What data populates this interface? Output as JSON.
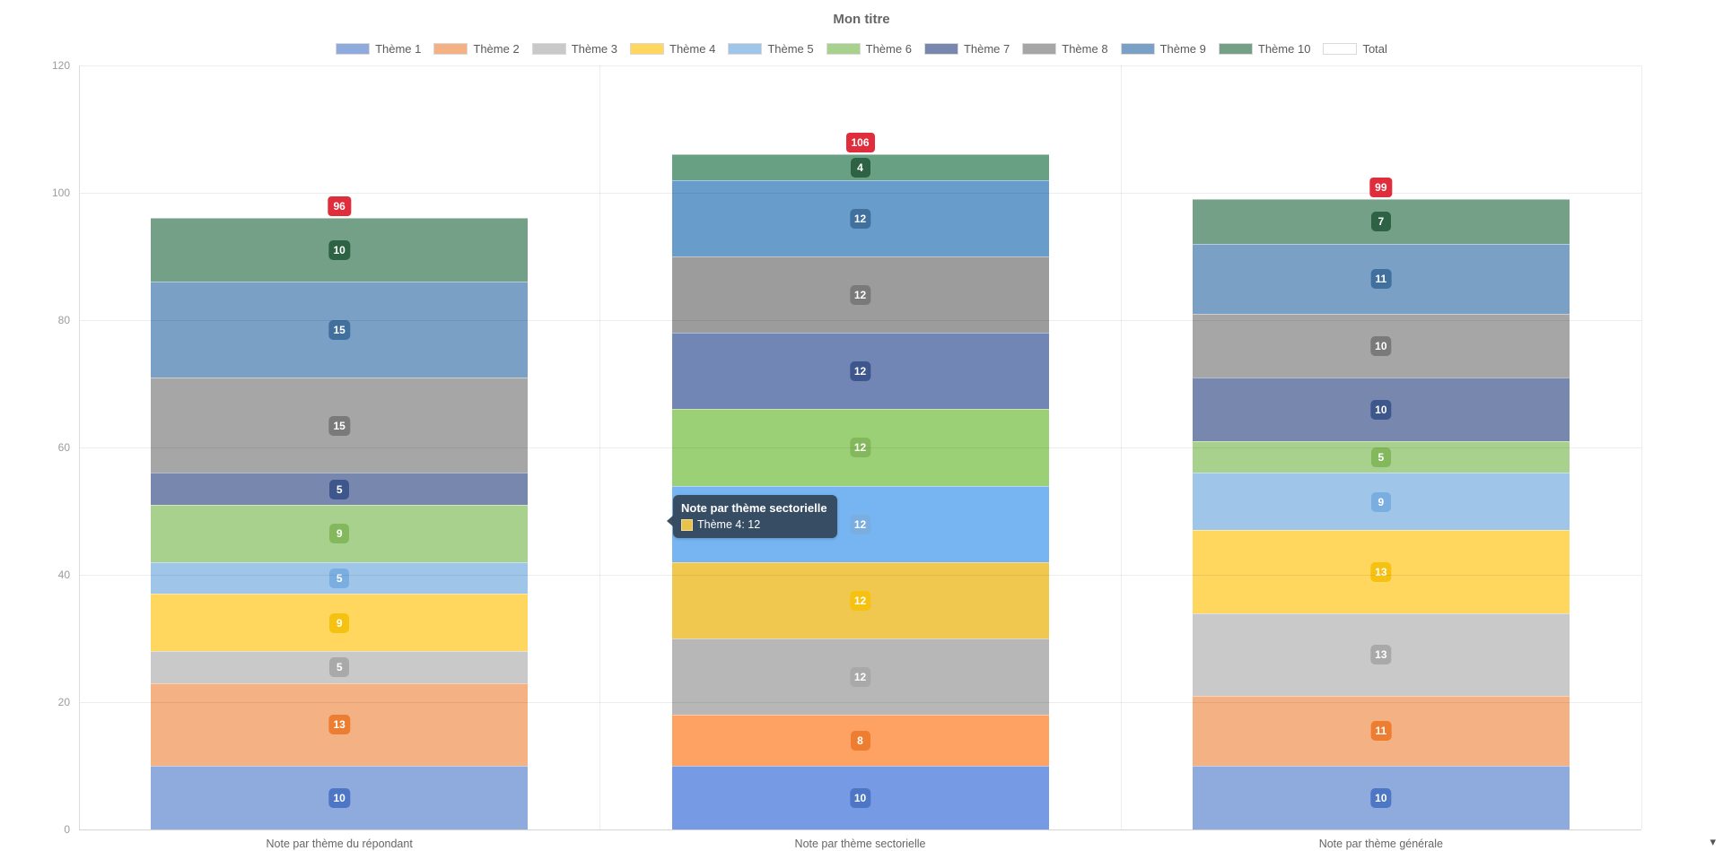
{
  "title": "Mon titre",
  "legend_items": [
    {
      "label": "Thème 1",
      "color": "#8faadc"
    },
    {
      "label": "Thème 2",
      "color": "#f4b183"
    },
    {
      "label": "Thème 3",
      "color": "#c9c9c9"
    },
    {
      "label": "Thème 4",
      "color": "#ffd75e"
    },
    {
      "label": "Thème 5",
      "color": "#9fc5e8"
    },
    {
      "label": "Thème 6",
      "color": "#a9d18e"
    },
    {
      "label": "Thème 7",
      "color": "#7787ad"
    },
    {
      "label": "Thème 8",
      "color": "#a6a6a6"
    },
    {
      "label": "Thème 9",
      "color": "#7ba0c6"
    },
    {
      "label": "Thème 10",
      "color": "#74a087"
    },
    {
      "label": "Total",
      "color": "#ffffff"
    }
  ],
  "chart_data": {
    "type": "bar",
    "stacked": true,
    "title": "Mon titre",
    "categories": [
      "Note par thème du répondant",
      "Note par thème sectorielle",
      "Note par thème générale"
    ],
    "series": [
      {
        "name": "Thème 1",
        "values": [
          10,
          10,
          10
        ],
        "color": "#8faadc",
        "hover_color": "#769ae4",
        "badge_color": "#4d76c4"
      },
      {
        "name": "Thème 2",
        "values": [
          13,
          8,
          11
        ],
        "color": "#f4b183",
        "hover_color": "#fda263",
        "badge_color": "#ed7d31"
      },
      {
        "name": "Thème 3",
        "values": [
          5,
          12,
          13
        ],
        "color": "#c9c9c9",
        "hover_color": "#b7b7b7",
        "badge_color": "#a9a9a9"
      },
      {
        "name": "Thème 4",
        "values": [
          9,
          12,
          13
        ],
        "color": "#ffd75e",
        "hover_color": "#f0c850",
        "badge_color": "#f6c211"
      },
      {
        "name": "Thème 5",
        "values": [
          5,
          12,
          9
        ],
        "color": "#9fc5e8",
        "hover_color": "#77b5f2",
        "badge_color": "#7aade0"
      },
      {
        "name": "Thème 6",
        "values": [
          9,
          12,
          5
        ],
        "color": "#a9d18e",
        "hover_color": "#9bd077",
        "badge_color": "#84b85c"
      },
      {
        "name": "Thème 7",
        "values": [
          5,
          12,
          10
        ],
        "color": "#7787ad",
        "hover_color": "#7186b4",
        "badge_color": "#3d568c"
      },
      {
        "name": "Thème 8",
        "values": [
          15,
          12,
          10
        ],
        "color": "#a6a6a6",
        "hover_color": "#9c9c9c",
        "badge_color": "#7a7a7a"
      },
      {
        "name": "Thème 9",
        "values": [
          15,
          12,
          11
        ],
        "color": "#7ba0c6",
        "hover_color": "#689cca",
        "badge_color": "#42709e"
      },
      {
        "name": "Thème 10",
        "values": [
          10,
          4,
          7
        ],
        "color": "#74a087",
        "hover_color": "#67a083",
        "badge_color": "#2d6344"
      }
    ],
    "totals": [
      96,
      106,
      99
    ],
    "total_badge_color": "#e02d3c",
    "hovered_category_index": 1,
    "y_ticks": [
      0,
      20,
      40,
      60,
      80,
      100,
      120
    ],
    "ylim": [
      0,
      120
    ],
    "grid": true,
    "legend_position": "top",
    "xlabel": "",
    "ylabel": ""
  },
  "tooltip": {
    "title": "Note par thème sectorielle",
    "line": "Thème 4: 12",
    "swatch_color": "#e8c24a",
    "bg_color": "#34495e"
  },
  "misc": {
    "corner_arrow": "▾"
  }
}
